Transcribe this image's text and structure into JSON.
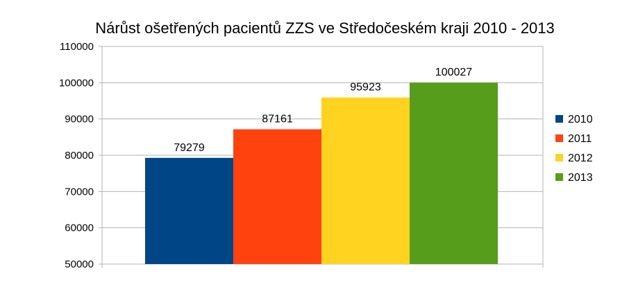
{
  "chart_data": {
    "type": "bar",
    "title": "Nárůst ošetřených pacientů ZZS ve Středočeském kraji 2010 - 2013",
    "xlabel": "",
    "ylabel": "",
    "ylim": [
      50000,
      110000
    ],
    "y_ticks": [
      50000,
      60000,
      70000,
      80000,
      90000,
      100000,
      110000
    ],
    "y_tick_labels": [
      "50000",
      "60000",
      "70000",
      "80000",
      "90000",
      "100000",
      "110000"
    ],
    "grid": true,
    "legend_position": "right",
    "series": [
      {
        "name": "2010",
        "value": 79279,
        "label": "79279",
        "color": "#004586"
      },
      {
        "name": "2011",
        "value": 87161,
        "label": "87161",
        "color": "#ff420e"
      },
      {
        "name": "2012",
        "value": 95923,
        "label": "95923",
        "color": "#ffd320"
      },
      {
        "name": "2013",
        "value": 100027,
        "label": "100027",
        "color": "#579d1c"
      }
    ]
  }
}
